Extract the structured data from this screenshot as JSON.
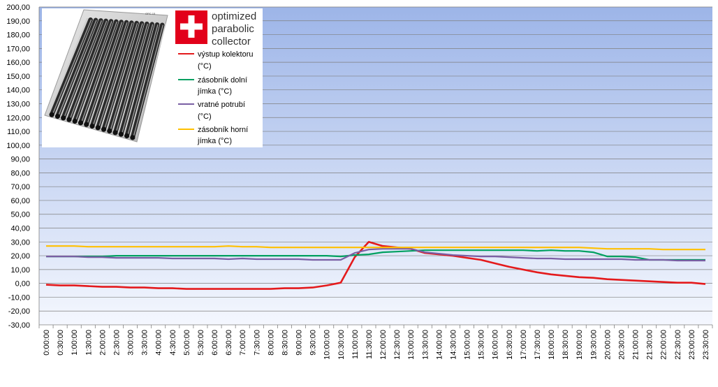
{
  "chart_data": {
    "type": "line",
    "ylim": [
      -30,
      200
    ],
    "y_ticks": [
      "-30,00",
      "-20,00",
      "-10,00",
      "0,00",
      "10,00",
      "20,00",
      "30,00",
      "40,00",
      "50,00",
      "60,00",
      "70,00",
      "80,00",
      "90,00",
      "100,00",
      "110,00",
      "120,00",
      "130,00",
      "140,00",
      "150,00",
      "160,00",
      "170,00",
      "180,00",
      "190,00",
      "200,00"
    ],
    "x": [
      "0:00:00",
      "0:30:00",
      "1:00:00",
      "1:30:00",
      "2:00:00",
      "2:30:00",
      "3:00:00",
      "3:30:00",
      "4:00:00",
      "4:30:00",
      "5:00:00",
      "5:30:00",
      "6:00:00",
      "6:30:00",
      "7:00:00",
      "7:30:00",
      "8:00:00",
      "8:30:00",
      "9:00:00",
      "9:30:00",
      "10:00:00",
      "10:30:00",
      "11:00:00",
      "11:30:00",
      "12:00:00",
      "12:30:00",
      "13:00:00",
      "13:30:00",
      "14:00:00",
      "14:30:00",
      "15:00:00",
      "15:30:00",
      "16:00:00",
      "16:30:00",
      "17:00:00",
      "17:30:00",
      "18:00:00",
      "18:30:00",
      "19:00:00",
      "19:30:00",
      "20:00:00",
      "20:30:00",
      "21:00:00",
      "21:30:00",
      "22:00:00",
      "22:30:00",
      "23:00:00",
      "23:30:00"
    ],
    "grid": true,
    "legend_position": "top-left inset",
    "series": [
      {
        "name": "výstup kolektoru (°C)",
        "color": "#e41a1c",
        "values": [
          -1,
          -1.5,
          -1.5,
          -2,
          -2.5,
          -2.5,
          -3,
          -3,
          -3.5,
          -3.5,
          -4,
          -4,
          -4,
          -4,
          -4,
          -4,
          -4,
          -3.5,
          -3.5,
          -3,
          -1.5,
          0.5,
          19,
          30,
          27,
          26,
          25,
          22,
          21,
          20,
          18.5,
          17,
          14.5,
          12,
          10,
          8,
          6.5,
          5.5,
          4.5,
          4,
          3,
          2.5,
          2,
          1.5,
          1,
          0.5,
          0.5,
          -0.5
        ]
      },
      {
        "name": "zásobník dolní jímka (°C)",
        "color": "#00a060",
        "values": [
          19.5,
          19.5,
          19.5,
          19.5,
          19.5,
          20,
          20,
          20,
          20,
          20,
          20,
          20,
          20,
          20,
          20,
          20,
          20,
          20,
          20,
          20,
          20,
          19.5,
          20.5,
          21,
          22.5,
          23,
          23.5,
          24,
          24,
          24,
          24,
          24,
          24,
          24,
          24,
          23.5,
          24,
          23.5,
          23.5,
          22.5,
          19.5,
          19.5,
          19,
          17,
          17,
          17,
          17,
          17
        ]
      },
      {
        "name": "vratné potrubí (°C)",
        "color": "#7a5fa4",
        "values": [
          19.5,
          19.5,
          19.5,
          19,
          19,
          18.5,
          18.5,
          18.5,
          18.5,
          18,
          18,
          18,
          18,
          17.5,
          18,
          17.5,
          17.5,
          17.5,
          17.5,
          17,
          17,
          17,
          22,
          24.5,
          25,
          25,
          25,
          22.5,
          21.5,
          20.5,
          20,
          19.5,
          19.5,
          19,
          18.5,
          18,
          18,
          17.5,
          17.5,
          17.5,
          17.5,
          17.5,
          17,
          17,
          17,
          16.5,
          16.5,
          16.5
        ]
      },
      {
        "name": "zásobník horní jímka (°C)",
        "color": "#ffc000",
        "values": [
          27,
          27,
          27,
          26.5,
          26.5,
          26.5,
          26.5,
          26.5,
          26.5,
          26.5,
          26.5,
          26.5,
          26.5,
          27,
          26.5,
          26.5,
          26,
          26,
          26,
          26,
          26,
          26,
          26,
          26,
          26,
          26,
          26,
          26,
          26,
          26,
          26,
          26,
          26,
          26,
          26,
          26,
          26,
          26,
          26,
          25.5,
          25,
          25,
          25,
          25,
          24.5,
          24.5,
          24.5,
          24.5
        ]
      }
    ]
  },
  "legend": {
    "items": [
      {
        "line1": "výstup kolektoru",
        "line2": "(°C)",
        "color": "#e41a1c"
      },
      {
        "line1": "zásobník dolní",
        "line2": "jímka (°C)",
        "color": "#00a060"
      },
      {
        "line1": "vratné potrubí",
        "line2": "(°C)",
        "color": "#7a5fa4"
      },
      {
        "line1": "zásobník horní",
        "line2": "jímka (°C)",
        "color": "#ffc000"
      }
    ]
  },
  "brand": {
    "line1": "optimized",
    "line2": "parabolic",
    "line3": "collector",
    "model_label": "OPC 15",
    "flag_color": "#e2001a",
    "logo_icon": "swiss-cross-icon",
    "product_icon": "solar-collector-image"
  },
  "colors": {
    "plot_top": "#9db5e8",
    "plot_bottom": "#f4f7fe",
    "gridline": "#7f7f7f"
  }
}
